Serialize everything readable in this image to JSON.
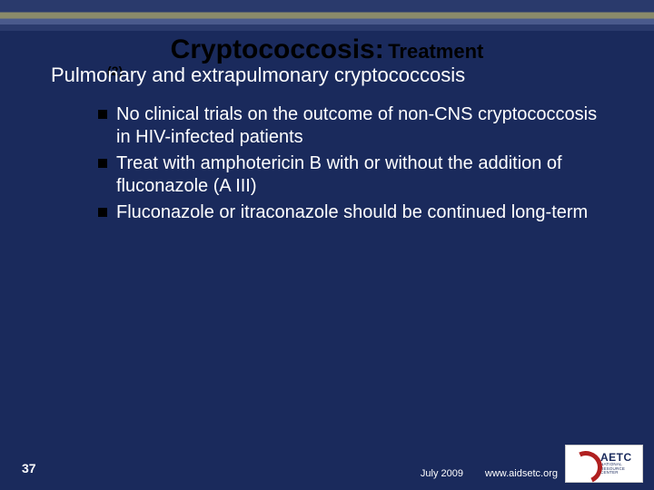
{
  "colors": {
    "background": "#1a2a5c",
    "title_text": "#000000",
    "body_text": "#ffffff",
    "bullet_marker": "#000000",
    "logo_accent": "#b02020",
    "logo_text": "#1a2a5c"
  },
  "typography": {
    "title_fontsize": 30,
    "subtitle_fontsize": 22,
    "body_fontsize": 20,
    "footer_fontsize": 11,
    "font_family": "Arial"
  },
  "title": {
    "main": "Cryptococcosis:",
    "sub": "Treatment",
    "num": "(2)"
  },
  "subtitle": "Pulmonary and extrapulmonary cryptococcosis",
  "bullets": [
    "No clinical trials on the outcome of non-CNS cryptococcosis in HIV-infected patients",
    "Treat with amphotericin B with or without the addition of fluconazole (A III)",
    "Fluconazole or itraconazole should be continued long-term"
  ],
  "footer": {
    "slide_number": "37",
    "date": "July 2009",
    "url": "www.aidsetc.org"
  },
  "logo": {
    "acronym": "AETC",
    "line1": "NATIONAL",
    "line2": "RESOURCE",
    "line3": "CENTER"
  }
}
